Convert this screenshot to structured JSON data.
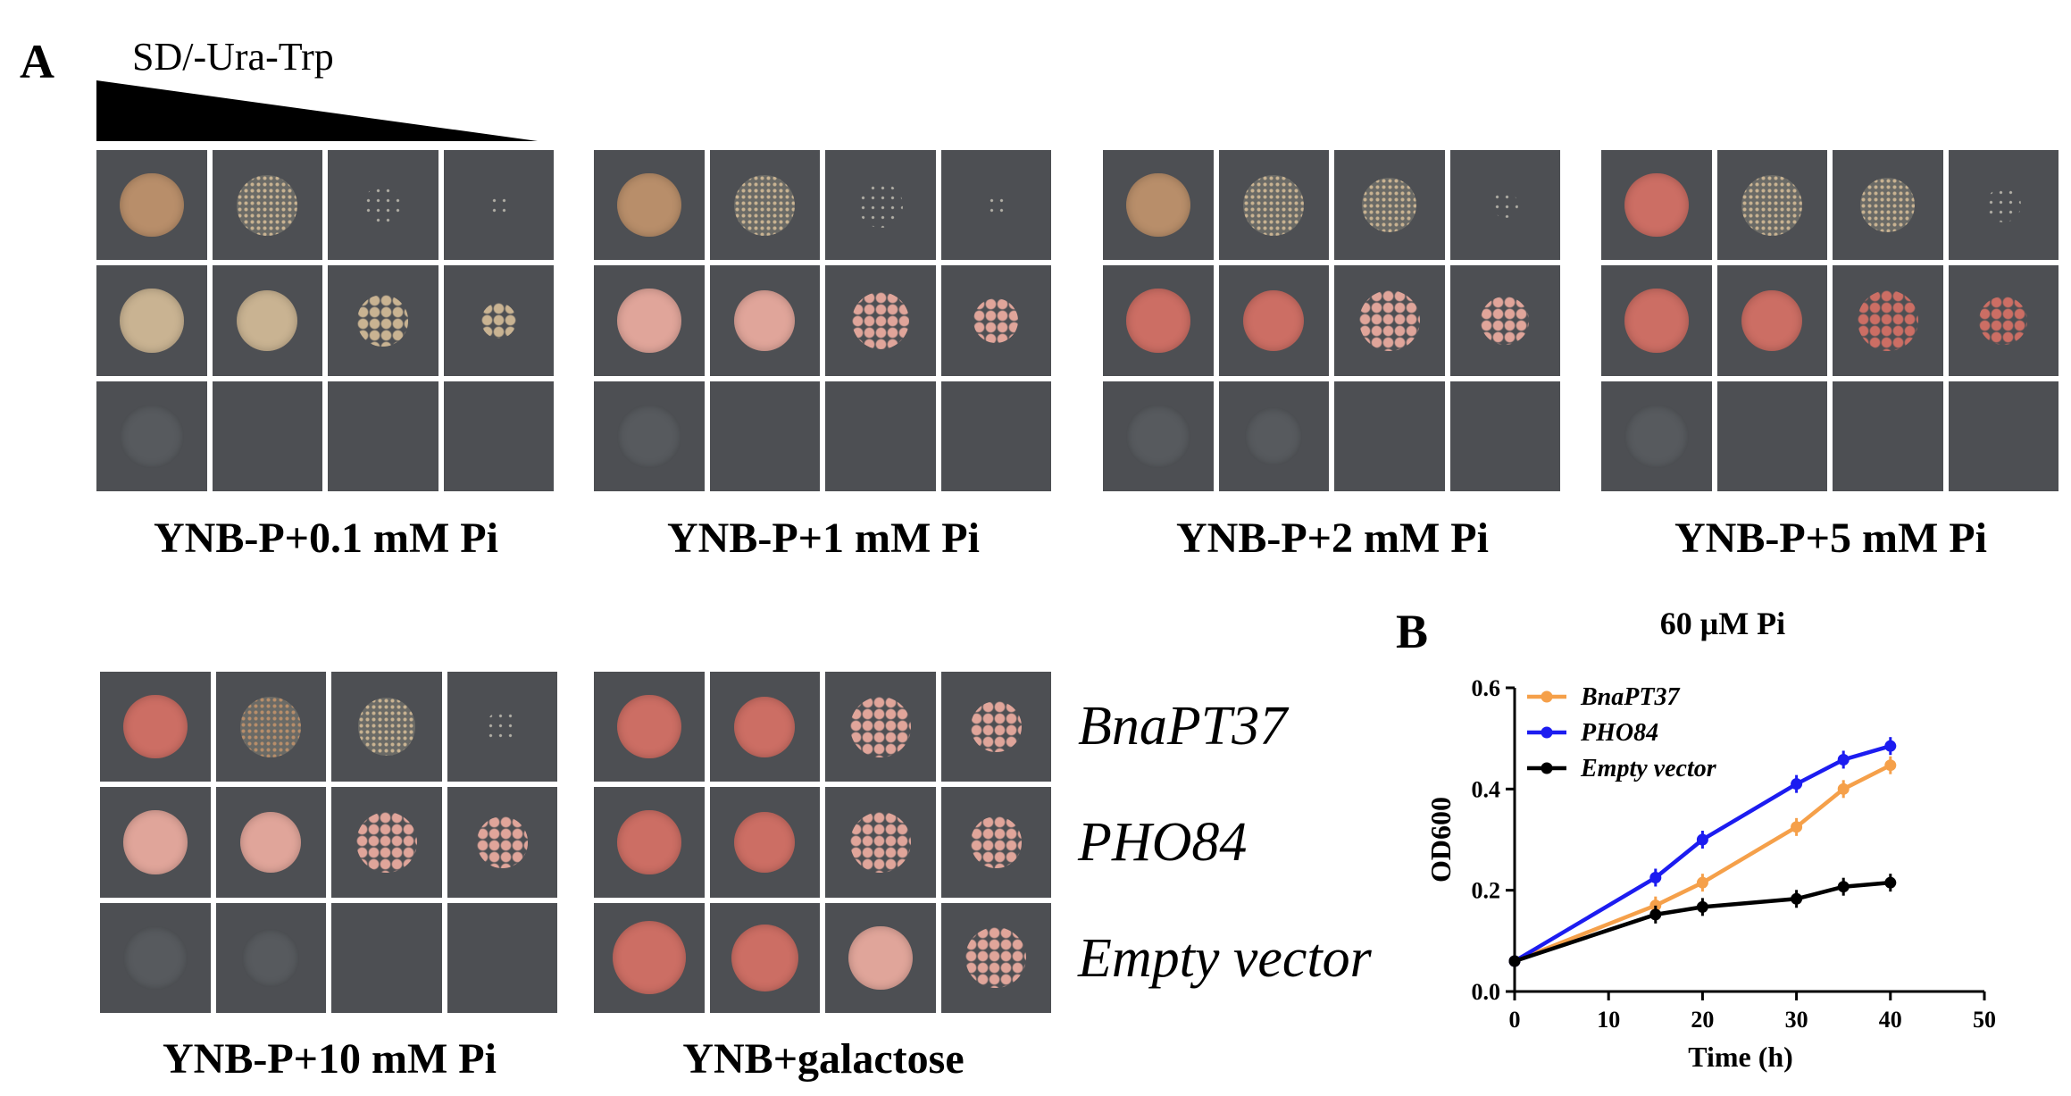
{
  "panel_a": {
    "letter": "A",
    "dilution_label": "SD/-Ura-Trp",
    "plates_top": [
      {
        "title": "YNB-P+0.1 mM Pi"
      },
      {
        "title": "YNB-P+1 mM Pi"
      },
      {
        "title": "YNB-P+2 mM Pi"
      },
      {
        "title": "YNB-P+5 mM Pi"
      }
    ],
    "plates_bottom": [
      {
        "title": "YNB-P+10 mM Pi"
      },
      {
        "title": "YNB+galactose"
      }
    ],
    "strains": [
      "BnaPT37",
      "PHO84",
      "Empty vector"
    ]
  },
  "panel_b": {
    "letter": "B",
    "chart_data": {
      "type": "line",
      "title": "60 μM Pi",
      "xlabel": "Time (h)",
      "ylabel": "OD600",
      "xlim": [
        0,
        50
      ],
      "ylim": [
        0,
        0.6
      ],
      "xticks": [
        0,
        10,
        20,
        30,
        40,
        50
      ],
      "yticks": [
        0.0,
        0.2,
        0.4,
        0.6
      ],
      "xtick_labels": [
        "0",
        "10",
        "20",
        "30",
        "40",
        "50"
      ],
      "ytick_labels": [
        "0.0",
        "0.2",
        "0.4",
        "0.6"
      ],
      "legend_position": "top-left",
      "series": [
        {
          "name": "BnaPT37",
          "color": "#f5a04a",
          "x": [
            0,
            15,
            20,
            30,
            35,
            40
          ],
          "y": [
            0.06,
            0.17,
            0.215,
            0.325,
            0.4,
            0.447
          ]
        },
        {
          "name": "PHO84",
          "color": "#1c1cf0",
          "x": [
            0,
            15,
            20,
            30,
            35,
            40
          ],
          "y": [
            0.06,
            0.225,
            0.3,
            0.41,
            0.458,
            0.485
          ]
        },
        {
          "name": "Empty vector",
          "color": "#000000",
          "x": [
            0,
            15,
            20,
            30,
            35,
            40
          ],
          "y": [
            0.06,
            0.152,
            0.167,
            0.183,
            0.207,
            0.215
          ]
        }
      ]
    }
  }
}
